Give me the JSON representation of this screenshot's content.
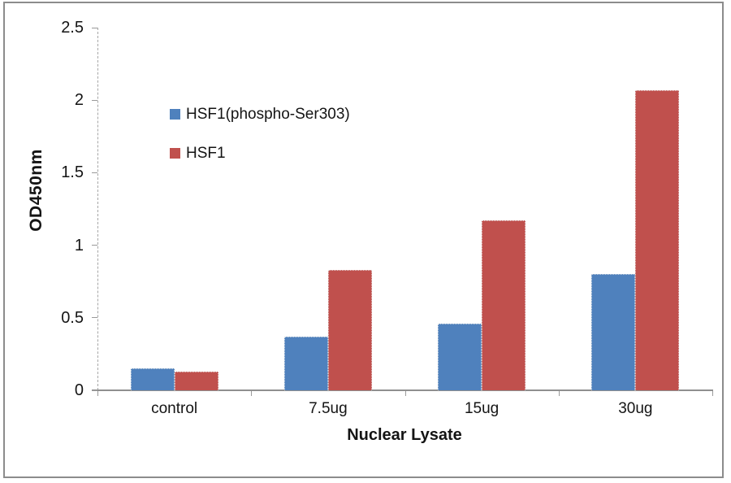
{
  "figure": {
    "background": "#FFFFFF",
    "border_color": "#8C8C8C",
    "axis_color": "#A6A6A6",
    "text_color": "#141414"
  },
  "chart_data": {
    "type": "bar",
    "title": "",
    "xlabel": "Nuclear Lysate",
    "ylabel": "OD450nm",
    "categories": [
      "control",
      "7.5ug",
      "15ug",
      "30ug"
    ],
    "series": [
      {
        "name": "HSF1(phospho-Ser303)",
        "color": "#4F81BD",
        "values": [
          0.15,
          0.37,
          0.46,
          0.8
        ]
      },
      {
        "name": "HSF1",
        "color": "#C0504D",
        "values": [
          0.13,
          0.83,
          1.17,
          2.07
        ]
      }
    ],
    "ylim": [
      0,
      2.5
    ],
    "ytick_interval": 0.5,
    "yticks": [
      "0",
      "0.5",
      "1",
      "1.5",
      "2",
      "2.5"
    ],
    "grid": false,
    "legend_position": "inside-upper-left"
  }
}
